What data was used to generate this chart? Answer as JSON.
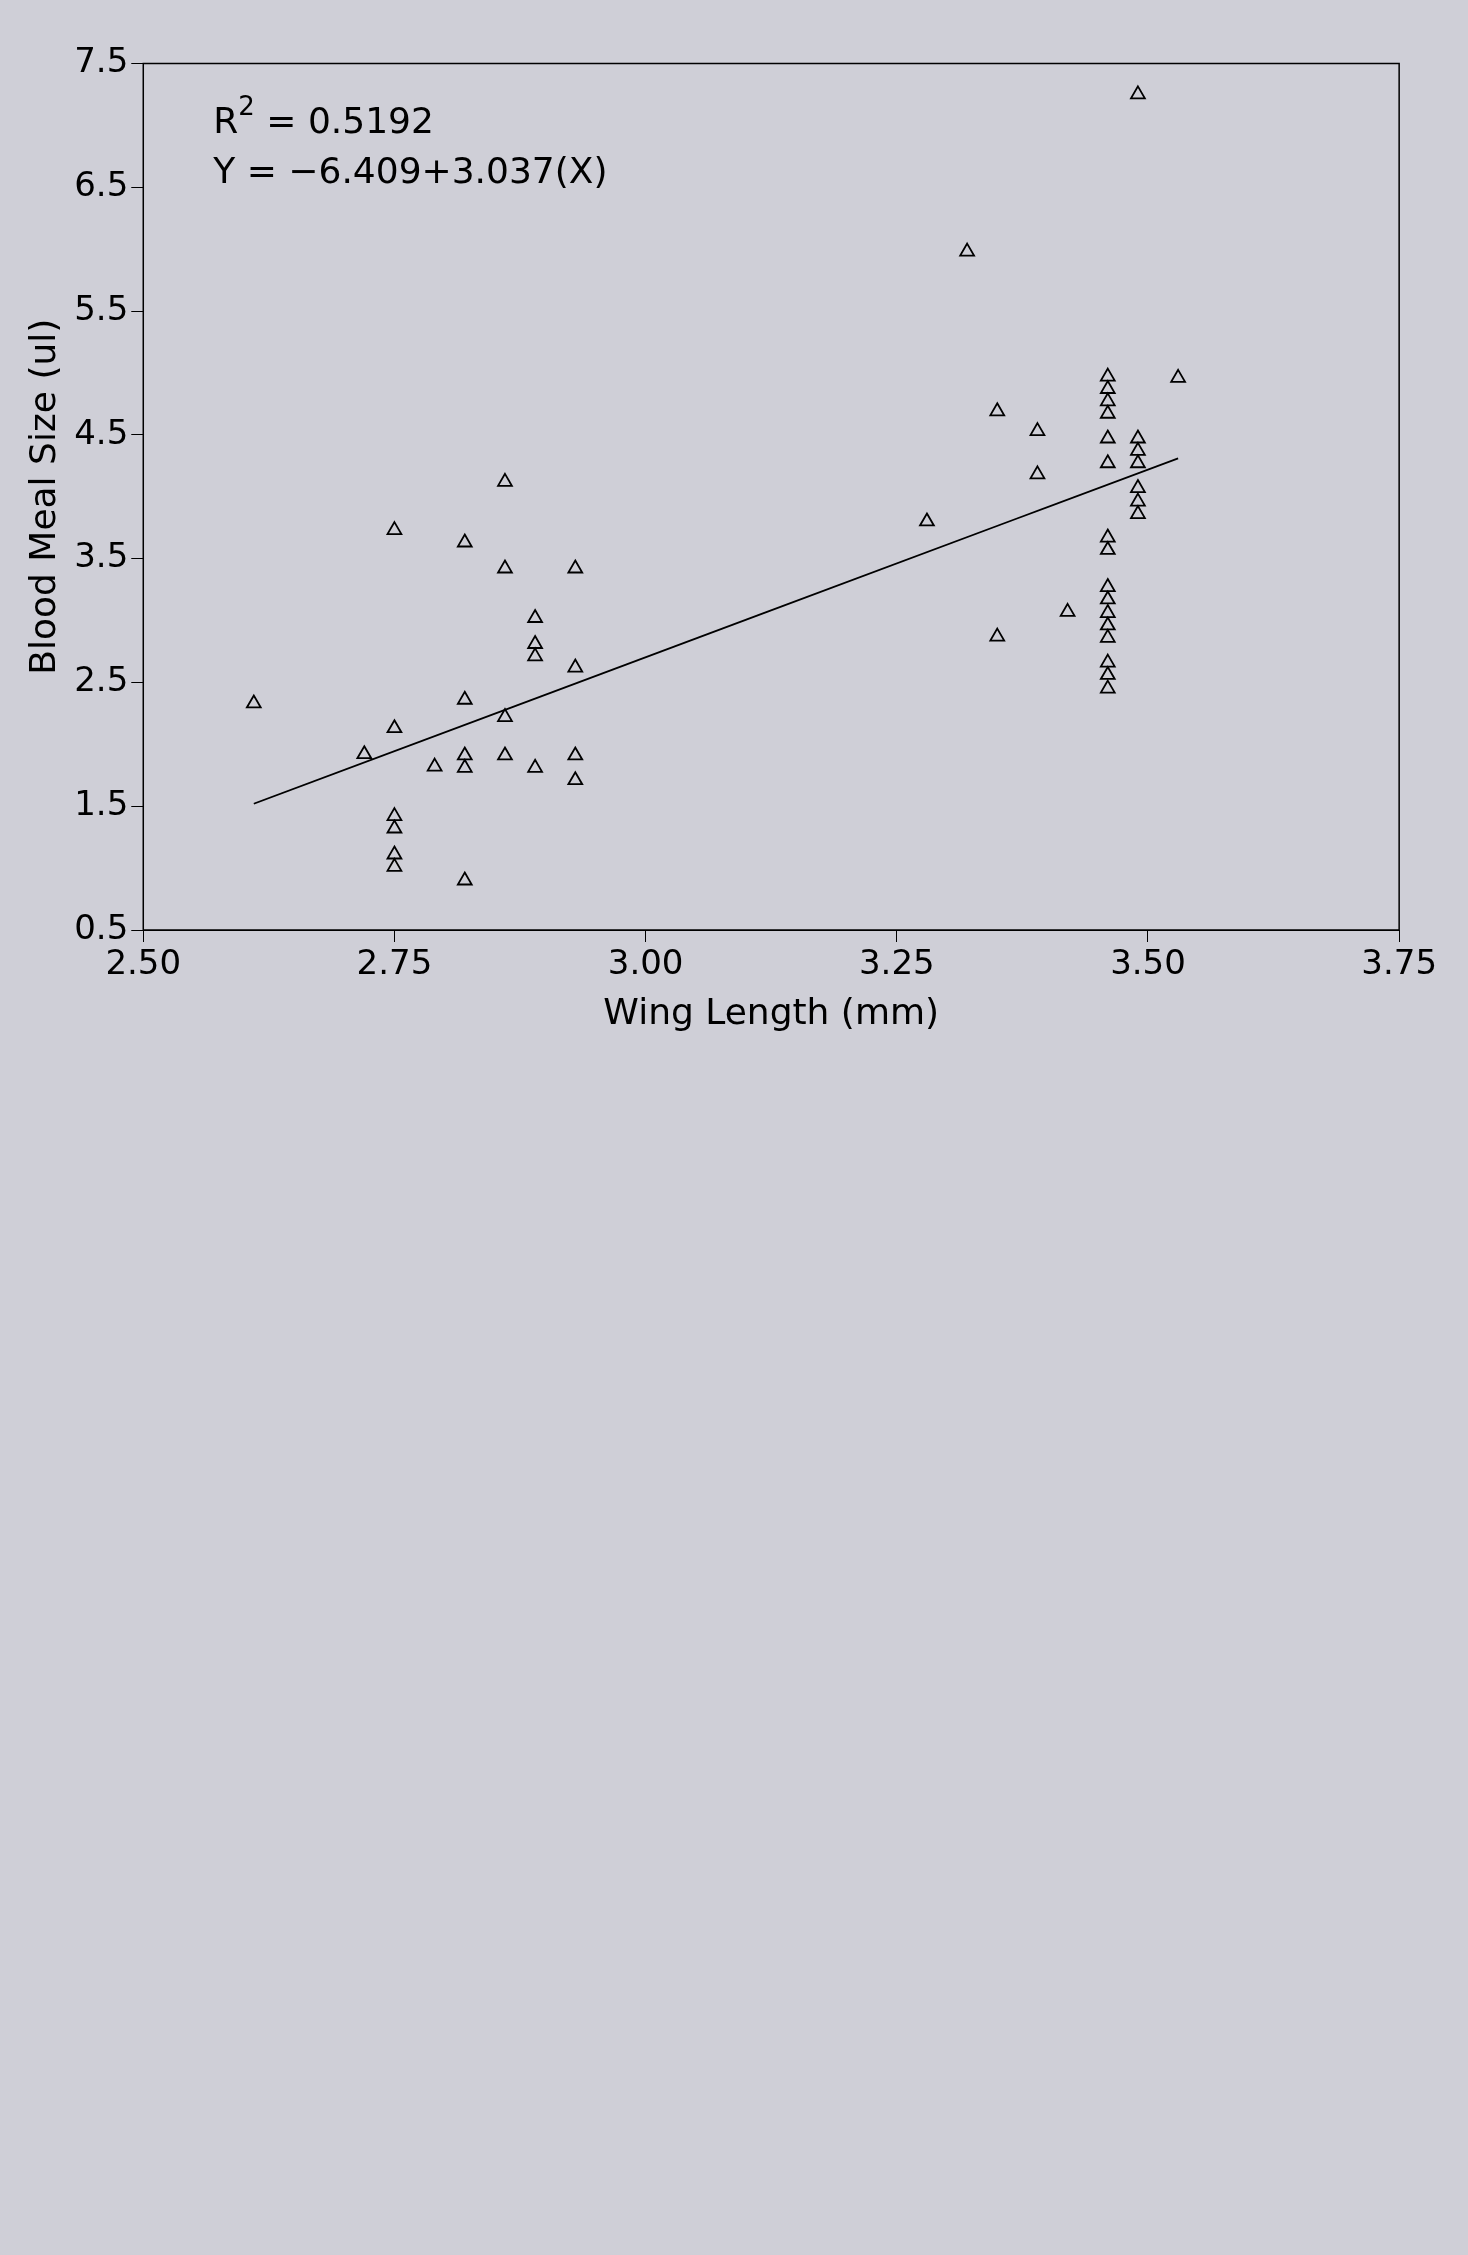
{
  "chart_data": {
    "type": "scatter",
    "xlabel": "Wing Length (mm)",
    "ylabel": "Blood Meal Size (ul)",
    "xlim": [
      2.5,
      3.75
    ],
    "xticks": [
      {
        "value": 2.5,
        "label": "2.50"
      },
      {
        "value": 2.75,
        "label": "2.75"
      },
      {
        "value": 3.0,
        "label": "3.00"
      },
      {
        "value": 3.25,
        "label": "3.25"
      },
      {
        "value": 3.5,
        "label": "3.50"
      },
      {
        "value": 3.75,
        "label": "3.75"
      }
    ],
    "ylim": [
      0.5,
      7.5
    ],
    "yticks": [
      0.5,
      1.5,
      2.5,
      3.5,
      4.5,
      5.5,
      6.5,
      7.5
    ],
    "grid": false,
    "marker": "triangle",
    "annotations": [
      "R$^{2}$ = 0.5192",
      "Y = −6.409+3.037(X)"
    ],
    "series": [
      {
        "color": "#000000",
        "x": [
          3.53,
          3.49,
          3.49,
          3.49,
          3.49,
          3.49,
          3.49,
          3.49,
          3.46,
          3.46,
          3.46,
          3.46,
          3.46,
          3.46,
          3.46,
          3.46,
          3.46,
          3.46,
          3.46,
          3.46,
          3.46,
          3.46,
          3.46,
          3.46,
          3.42,
          3.39,
          3.39,
          3.35,
          3.35,
          3.32,
          3.28,
          2.93,
          2.93,
          2.93,
          2.93,
          2.89,
          2.89,
          2.89,
          2.89,
          2.86,
          2.86,
          2.86,
          2.86,
          2.82,
          2.82,
          2.82,
          2.82,
          2.82,
          2.79,
          2.75,
          2.75,
          2.75,
          2.75,
          2.75,
          2.75,
          2.72,
          2.61
        ],
        "values": [
          4.96,
          7.25,
          4.47,
          4.37,
          4.27,
          4.07,
          3.96,
          3.86,
          4.97,
          4.87,
          4.77,
          4.67,
          4.47,
          4.27,
          3.67,
          3.57,
          3.27,
          3.17,
          3.06,
          2.96,
          2.86,
          2.66,
          2.56,
          2.45,
          3.07,
          4.53,
          4.18,
          4.69,
          2.87,
          5.98,
          3.8,
          3.42,
          2.62,
          1.91,
          1.71,
          3.02,
          2.81,
          2.71,
          1.81,
          4.12,
          3.42,
          2.22,
          1.91,
          3.63,
          2.36,
          1.91,
          1.81,
          0.9,
          1.82,
          3.73,
          2.13,
          1.42,
          1.32,
          1.11,
          1.01,
          1.92,
          2.33
        ]
      },
      {
        "type": "line",
        "color": "#000000",
        "line_style": "solid",
        "marker": "none",
        "x": [
          2.61,
          3.53
        ],
        "values": [
          1.52,
          4.31
        ]
      }
    ]
  }
}
